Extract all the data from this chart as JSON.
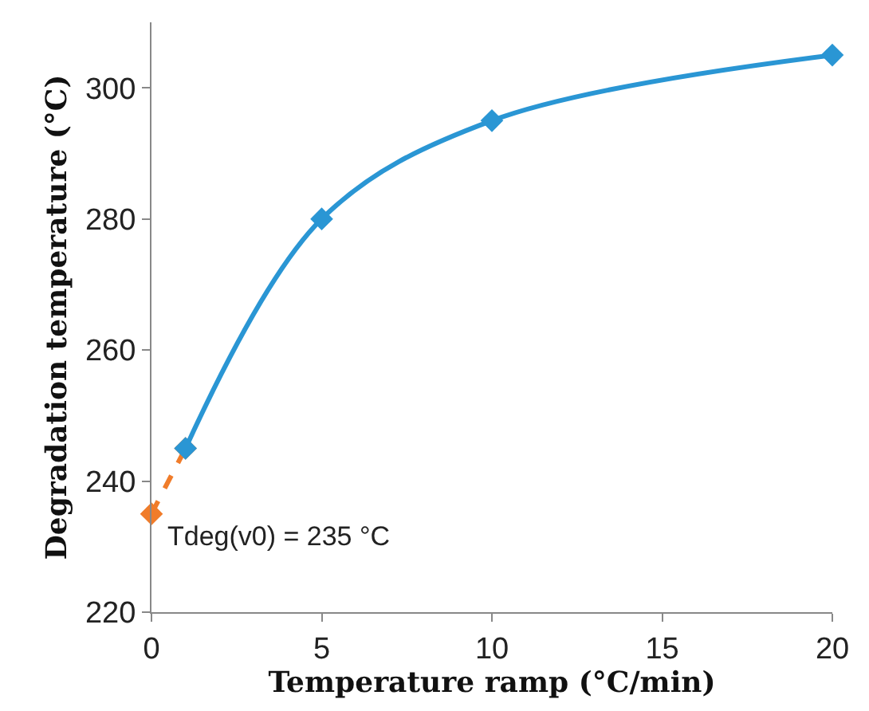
{
  "chart_data": {
    "type": "line",
    "xlabel": "Temperature ramp (°C/min)",
    "ylabel": "Degradation temperature (°C)",
    "xlim": [
      0,
      20
    ],
    "xticks": [
      0,
      5,
      10,
      15,
      20
    ],
    "ylim": [
      220,
      310
    ],
    "yticks": [
      220,
      240,
      260,
      280,
      300
    ],
    "marker": "diamond",
    "series": [
      {
        "color": "#f07c2a",
        "x": [
          0,
          1
        ],
        "values": [
          235,
          245
        ],
        "line_style": "dashed"
      },
      {
        "color": "#2a96d4",
        "x": [
          1,
          5,
          10,
          20
        ],
        "values": [
          245,
          280,
          295,
          305
        ],
        "line_style": "solid"
      }
    ],
    "annotations": [
      {
        "text": "Tdeg(v0) = 235 °C",
        "x": 0,
        "y": 235
      }
    ]
  }
}
